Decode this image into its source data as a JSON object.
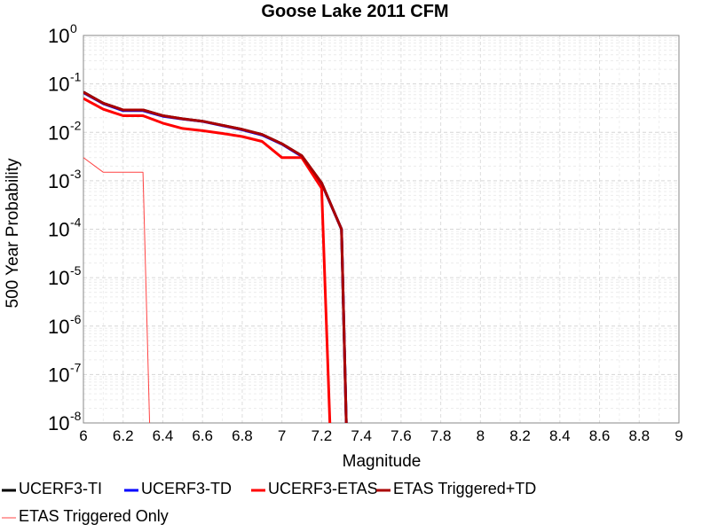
{
  "chart_data": {
    "type": "line",
    "title": "Goose Lake 2011 CFM",
    "xlabel": "Magnitude",
    "ylabel": "500 Year Probability",
    "xlim": [
      6,
      9
    ],
    "ylim": [
      1e-08,
      1
    ],
    "yscale": "log",
    "grid": true,
    "legend_position": "bottom",
    "x_ticks": [
      "6",
      "6.2",
      "6.4",
      "6.6",
      "6.8",
      "7",
      "7.2",
      "7.4",
      "7.6",
      "7.8",
      "8",
      "8.2",
      "8.4",
      "8.6",
      "8.8",
      "9"
    ],
    "y_ticks": [
      {
        "base": "10",
        "exp": "0"
      },
      {
        "base": "10",
        "exp": "-1"
      },
      {
        "base": "10",
        "exp": "-2"
      },
      {
        "base": "10",
        "exp": "-3"
      },
      {
        "base": "10",
        "exp": "-4"
      },
      {
        "base": "10",
        "exp": "-5"
      },
      {
        "base": "10",
        "exp": "-6"
      },
      {
        "base": "10",
        "exp": "-7"
      },
      {
        "base": "10",
        "exp": "-8"
      }
    ],
    "series": [
      {
        "name": "UCERF3-TI",
        "color": "#000000",
        "width": 3,
        "x": [
          6.0,
          6.1,
          6.2,
          6.3,
          6.4,
          6.5,
          6.6,
          6.7,
          6.8,
          6.9,
          7.0,
          7.1,
          7.2,
          7.3,
          7.33
        ],
        "y": [
          0.068,
          0.04,
          0.029,
          0.029,
          0.022,
          0.019,
          0.017,
          0.014,
          0.0115,
          0.009,
          0.0058,
          0.0033,
          0.0009,
          0.0001,
          1e-09
        ]
      },
      {
        "name": "UCERF3-TD",
        "color": "#0000ff",
        "width": 3,
        "x": [
          6.0,
          6.1,
          6.2,
          6.3,
          6.4,
          6.5,
          6.6,
          6.7,
          6.8,
          6.9,
          7.0,
          7.1,
          7.2,
          7.3,
          7.33
        ],
        "y": [
          0.066,
          0.039,
          0.028,
          0.028,
          0.0215,
          0.0188,
          0.0168,
          0.0138,
          0.0113,
          0.0088,
          0.0057,
          0.0032,
          0.00088,
          0.0001,
          1e-09
        ]
      },
      {
        "name": "UCERF3-ETAS",
        "color": "#ff0000",
        "width": 3,
        "x": [
          6.0,
          6.1,
          6.2,
          6.3,
          6.4,
          6.5,
          6.6,
          6.7,
          6.8,
          6.9,
          7.0,
          7.1,
          7.2,
          7.25
        ],
        "y": [
          0.05,
          0.03,
          0.022,
          0.022,
          0.0155,
          0.012,
          0.0108,
          0.0095,
          0.0082,
          0.0065,
          0.003,
          0.003,
          0.0007,
          1e-09
        ]
      },
      {
        "name": "ETAS Triggered+TD",
        "color": "#aa0000",
        "width": 3,
        "x": [
          6.0,
          6.1,
          6.2,
          6.3,
          6.4,
          6.5,
          6.6,
          6.7,
          6.8,
          6.9,
          7.0,
          7.1,
          7.2,
          7.3,
          7.33
        ],
        "y": [
          0.067,
          0.04,
          0.029,
          0.029,
          0.022,
          0.019,
          0.017,
          0.014,
          0.0115,
          0.009,
          0.0058,
          0.0033,
          0.0009,
          0.0001,
          1e-09
        ]
      },
      {
        "name": "ETAS Triggered Only",
        "color": "#ff4444",
        "width": 1,
        "x": [
          6.0,
          6.1,
          6.2,
          6.3,
          6.34
        ],
        "y": [
          0.003,
          0.0015,
          0.0015,
          0.0015,
          1e-09
        ]
      }
    ]
  }
}
